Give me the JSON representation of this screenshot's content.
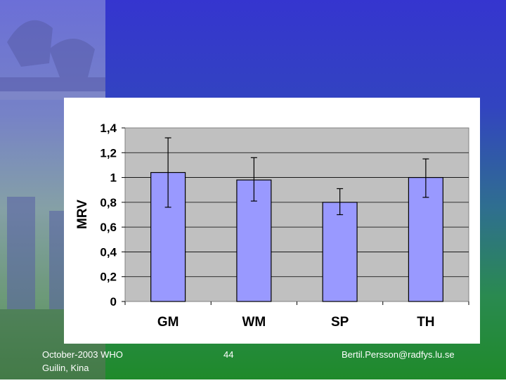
{
  "slide": {
    "footer_left_line1": "October-2003 WHO",
    "footer_left_line2": "Guilin, Kina",
    "page_number": "44",
    "footer_right": "Bertil.Persson@radfys.lu.se"
  },
  "colors": {
    "bar_fill": "#9999ff",
    "plot_bg": "#c0c0c0"
  },
  "chart_data": {
    "type": "bar",
    "title": "",
    "xlabel": "",
    "ylabel": "MRV",
    "categories": [
      "GM",
      "WM",
      "SP",
      "TH"
    ],
    "values": [
      1.04,
      0.98,
      0.8,
      1.0
    ],
    "error_low": [
      0.76,
      0.81,
      0.7,
      0.84
    ],
    "error_high": [
      1.32,
      1.16,
      0.91,
      1.15
    ],
    "ylim": [
      0,
      1.4
    ],
    "yticks": [
      0,
      0.2,
      0.4,
      0.6,
      0.8,
      1,
      1.2,
      1.4
    ],
    "ytick_labels": [
      "0",
      "0,2",
      "0,4",
      "0,6",
      "0,8",
      "1",
      "1,2",
      "1,4"
    ],
    "grid": true,
    "legend": "none"
  }
}
